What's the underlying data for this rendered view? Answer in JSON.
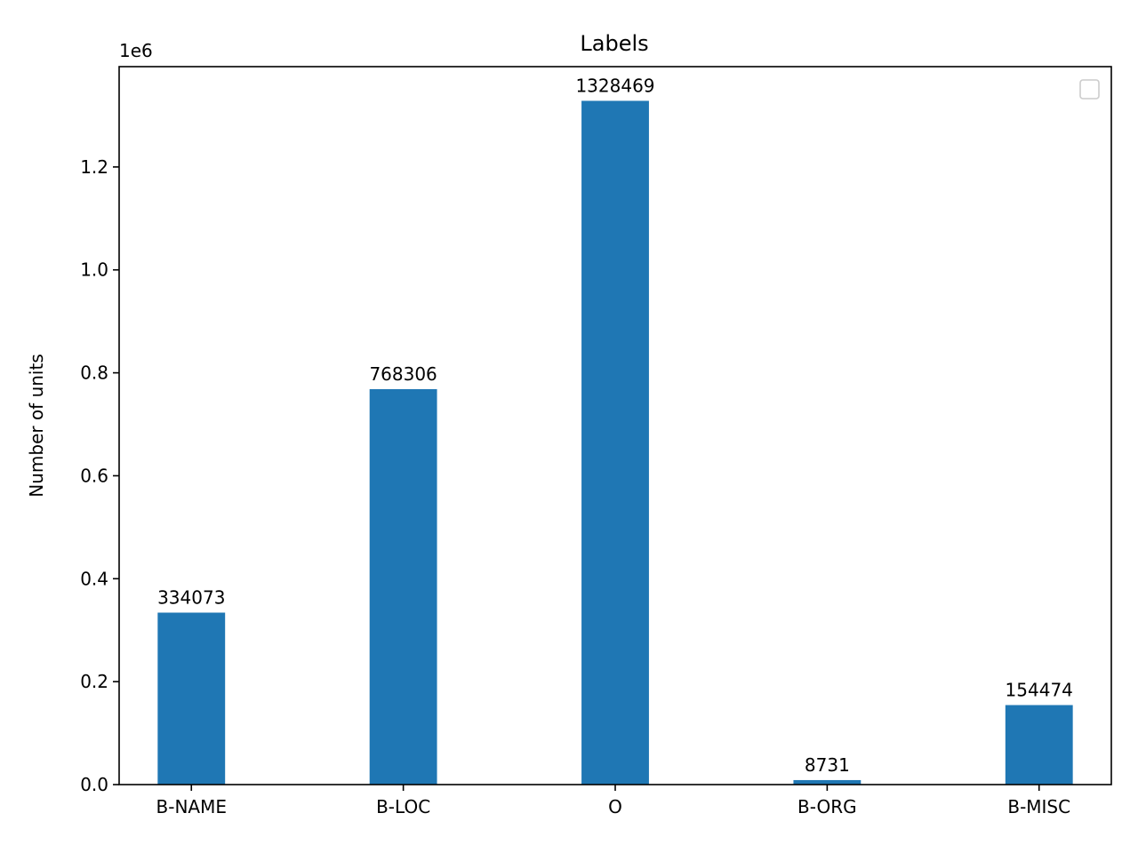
{
  "chart_data": {
    "type": "bar",
    "title": "Labels",
    "xlabel": "",
    "ylabel": "Number of units",
    "offset_text": "1e6",
    "categories": [
      "B-NAME",
      "B-LOC",
      "O",
      "B-ORG",
      "B-MISC"
    ],
    "values": [
      334073,
      768306,
      1328469,
      8731,
      154474
    ],
    "data_labels": [
      "334073",
      "768306",
      "1328469",
      "8731",
      "154474"
    ],
    "ylim": [
      0,
      1394892
    ],
    "yticks": [
      0,
      200000,
      400000,
      600000,
      800000,
      1000000,
      1200000
    ],
    "ytick_labels": [
      "0.0",
      "0.2",
      "0.4",
      "0.6",
      "0.8",
      "1.0",
      "1.2"
    ],
    "bar_color": "#1f77b4",
    "grid": false,
    "legend": {
      "placement": "top-right",
      "entries": []
    }
  }
}
